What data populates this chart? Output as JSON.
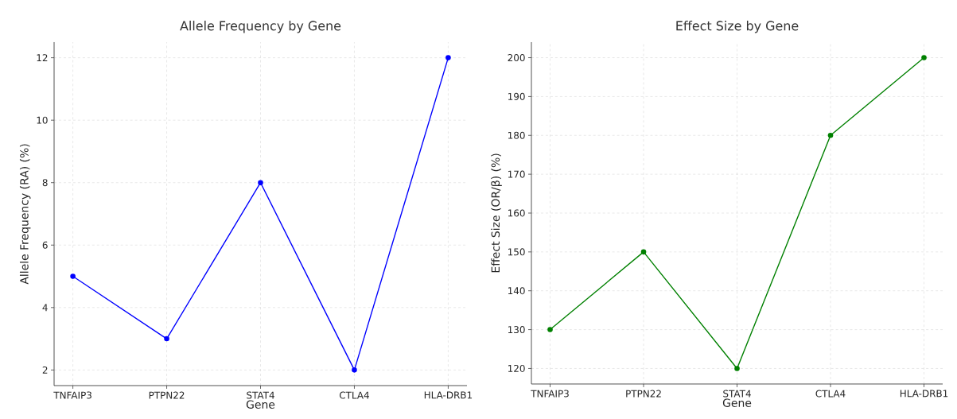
{
  "chart_data": [
    {
      "type": "line",
      "title": "Allele Frequency by Gene",
      "xlabel": "Gene",
      "ylabel": "Allele Frequency (RA) (%)",
      "categories": [
        "TNFAIP3",
        "PTPN22",
        "STAT4",
        "CTLA4",
        "HLA-DRB1"
      ],
      "values": [
        5,
        3,
        8,
        2,
        12
      ],
      "color": "#0000ff",
      "marker": "circle",
      "grid": true,
      "ylim": [
        1.5,
        12.5
      ],
      "yticks": [
        2,
        4,
        6,
        8,
        10,
        12
      ]
    },
    {
      "type": "line",
      "title": "Effect Size by Gene",
      "xlabel": "Gene",
      "ylabel": "Effect Size (OR/β) (%)",
      "categories": [
        "TNFAIP3",
        "PTPN22",
        "STAT4",
        "CTLA4",
        "HLA-DRB1"
      ],
      "values": [
        130,
        150,
        120,
        180,
        200
      ],
      "color": "#008000",
      "marker": "circle",
      "grid": true,
      "ylim": [
        116,
        204
      ],
      "yticks": [
        120,
        130,
        140,
        150,
        160,
        170,
        180,
        190,
        200
      ]
    }
  ]
}
